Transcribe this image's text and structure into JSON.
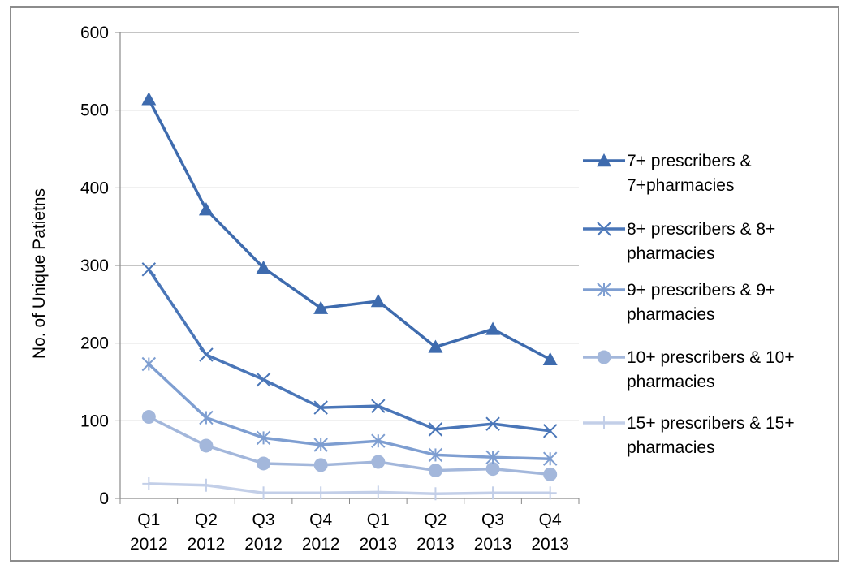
{
  "chart_data": {
    "type": "line",
    "title": "",
    "xlabel": "",
    "ylabel": "No. of Unique Patietns",
    "ylim": [
      0,
      600
    ],
    "yticks": [
      0,
      100,
      200,
      300,
      400,
      500,
      600
    ],
    "grid": true,
    "legend_position": "right",
    "categories": [
      [
        "Q1",
        "2012"
      ],
      [
        "Q2",
        "2012"
      ],
      [
        "Q3",
        "2012"
      ],
      [
        "Q4",
        "2012"
      ],
      [
        "Q1",
        "2013"
      ],
      [
        "Q2",
        "2013"
      ],
      [
        "Q3",
        "2013"
      ],
      [
        "Q4",
        "2013"
      ]
    ],
    "series": [
      {
        "name_lines": [
          "7+ prescribers &",
          "7+pharmacies"
        ],
        "marker": "triangle",
        "color": "#3E6BAE",
        "values": [
          514,
          372,
          297,
          245,
          254,
          195,
          218,
          179
        ]
      },
      {
        "name_lines": [
          "8+ prescribers & 8+",
          "pharmacies"
        ],
        "marker": "x",
        "color": "#4A76B8",
        "values": [
          295,
          185,
          153,
          117,
          119,
          89,
          96,
          87
        ]
      },
      {
        "name_lines": [
          "9+ prescribers & 9+",
          "pharmacies"
        ],
        "marker": "star",
        "color": "#7E9ED1",
        "values": [
          173,
          104,
          78,
          69,
          74,
          56,
          53,
          51
        ]
      },
      {
        "name_lines": [
          "10+ prescribers & 10+",
          "pharmacies"
        ],
        "marker": "circle",
        "color": "#A3B7DB",
        "values": [
          105,
          68,
          45,
          43,
          47,
          36,
          38,
          31
        ]
      },
      {
        "name_lines": [
          "15+ prescribers & 15+",
          "pharmacies"
        ],
        "marker": "plus",
        "color": "#C3CFE8",
        "values": [
          19,
          17,
          7,
          7,
          8,
          6,
          7,
          7
        ]
      }
    ]
  }
}
